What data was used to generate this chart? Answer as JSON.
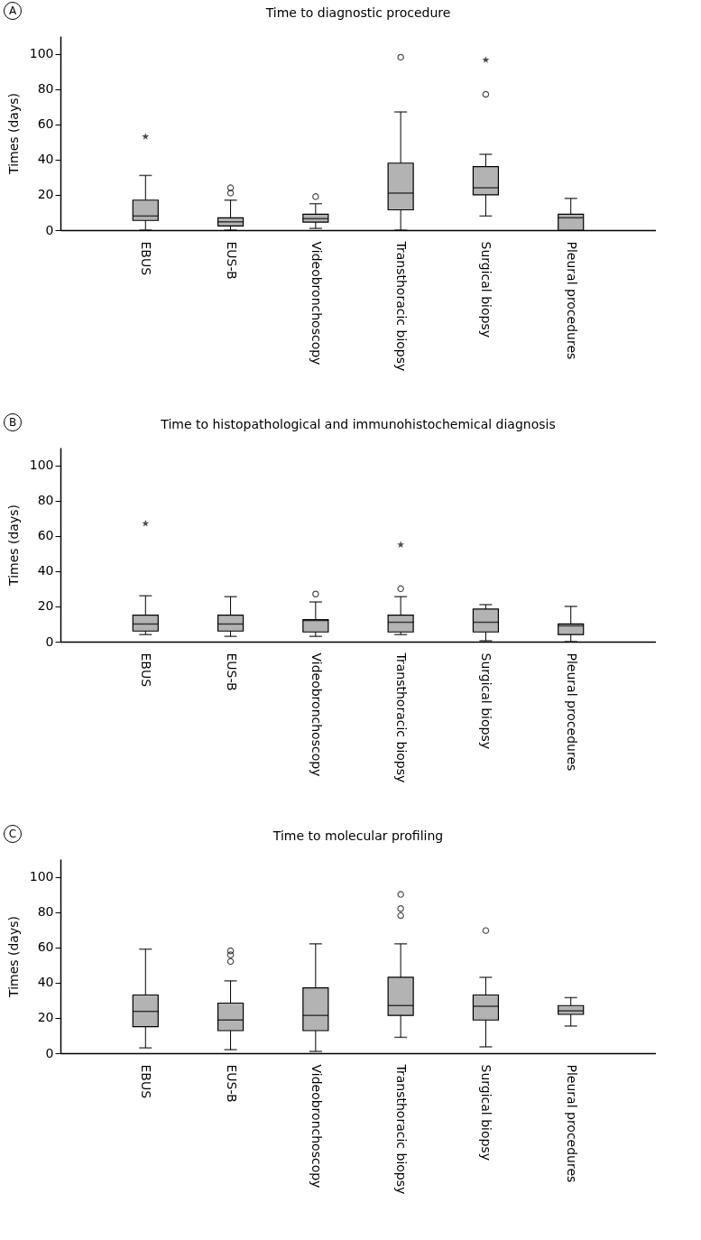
{
  "chart_data": [
    {
      "type": "box",
      "title": "Time to diagnostic procedure",
      "ylabel": "Times (days)",
      "annotations": [
        "A"
      ],
      "grid": false,
      "categories": [
        "EBUS",
        "EUS-B",
        "Videobronchoscopy",
        "Transthoracic biopsy",
        "Surgical biopsy",
        "Pleural procedures"
      ],
      "ylim": [
        0,
        110
      ],
      "yticks": [
        0,
        20,
        40,
        60,
        80,
        100
      ],
      "series": [
        {
          "type": "box",
          "color": "#b3b3b3",
          "boxes": [
            {
              "low": 0,
              "q1": 5.5,
              "median": 8,
              "q3": 17,
              "high": 31
            },
            {
              "low": 0,
              "q1": 2.4,
              "median": 4.7,
              "q3": 7,
              "high": 17,
              "outliers": [
                21,
                24
              ]
            },
            {
              "low": 1,
              "q1": 4.5,
              "median": 6.5,
              "q3": 9,
              "high": 15,
              "outliers": [
                19
              ]
            },
            {
              "low": 0,
              "q1": 11.5,
              "median": 21,
              "q3": 38,
              "high": 67,
              "outliers": [
                98
              ]
            },
            {
              "low": 8,
              "q1": 20,
              "median": 24,
              "q3": 36,
              "high": 43,
              "outliers": [
                77
              ]
            },
            {
              "low": 0,
              "q1": 0,
              "median": 7,
              "q3": 9,
              "high": 18
            }
          ]
        },
        {
          "type": "scatter",
          "marker": "star",
          "color": "#000000",
          "x": [
            "EBUS",
            "Surgical biopsy"
          ],
          "values": [
            53,
            96.5
          ]
        }
      ]
    },
    {
      "type": "box",
      "title": "Time to histopathological and immunohistochemical diagnosis",
      "ylabel": "Times (days)",
      "annotations": [
        "B"
      ],
      "grid": false,
      "categories": [
        "EBUS",
        "EUS-B",
        "Videobronchoscopy",
        "Transthoracic biopsy",
        "Surgical biopsy",
        "Pleural procedures"
      ],
      "ylim": [
        0,
        110
      ],
      "yticks": [
        0,
        20,
        40,
        60,
        80,
        100
      ],
      "series": [
        {
          "type": "box",
          "color": "#b3b3b3",
          "boxes": [
            {
              "low": 4,
              "q1": 6,
              "median": 10,
              "q3": 15,
              "high": 26
            },
            {
              "low": 3,
              "q1": 6,
              "median": 10,
              "q3": 15,
              "high": 25.5
            },
            {
              "low": 3,
              "q1": 5.5,
              "median": 12,
              "q3": 12.5,
              "high": 22.5,
              "outliers": [
                27
              ]
            },
            {
              "low": 4,
              "q1": 5.5,
              "median": 11,
              "q3": 15,
              "high": 25.5,
              "outliers": [
                30
              ]
            },
            {
              "low": 0.5,
              "q1": 5.5,
              "median": 11,
              "q3": 18.5,
              "high": 21
            },
            {
              "low": 0,
              "q1": 4,
              "median": 9,
              "q3": 10,
              "high": 20
            }
          ]
        },
        {
          "type": "scatter",
          "marker": "star",
          "color": "#000000",
          "x": [
            "EBUS",
            "Transthoracic biopsy"
          ],
          "values": [
            67,
            55
          ]
        }
      ]
    },
    {
      "type": "box",
      "title": "Time to molecular profiling",
      "ylabel": "Times (days)",
      "annotations": [
        "C"
      ],
      "grid": false,
      "categories": [
        "EBUS",
        "EUS-B",
        "Videobronchoscopy",
        "Transthoracic biopsy",
        "Surgical biopsy",
        "Pleural procedures"
      ],
      "ylim": [
        0,
        110
      ],
      "yticks": [
        0,
        20,
        40,
        60,
        80,
        100
      ],
      "series": [
        {
          "type": "box",
          "color": "#b3b3b3",
          "boxes": [
            {
              "low": 3,
              "q1": 15,
              "median": 23.7,
              "q3": 33,
              "high": 59
            },
            {
              "low": 2,
              "q1": 12.8,
              "median": 18.8,
              "q3": 28.4,
              "high": 41,
              "outliers": [
                52,
                55.7,
                58
              ]
            },
            {
              "low": 1,
              "q1": 12.8,
              "median": 21.4,
              "q3": 37,
              "high": 62
            },
            {
              "low": 9,
              "q1": 21.4,
              "median": 27,
              "q3": 43,
              "high": 62,
              "outliers": [
                78,
                82,
                90
              ]
            },
            {
              "low": 3.6,
              "q1": 18.8,
              "median": 26.6,
              "q3": 33,
              "high": 43,
              "outliers": [
                69.5
              ]
            },
            {
              "low": 15.4,
              "q1": 22,
              "median": 24,
              "q3": 27,
              "high": 31.5
            }
          ]
        }
      ]
    }
  ]
}
